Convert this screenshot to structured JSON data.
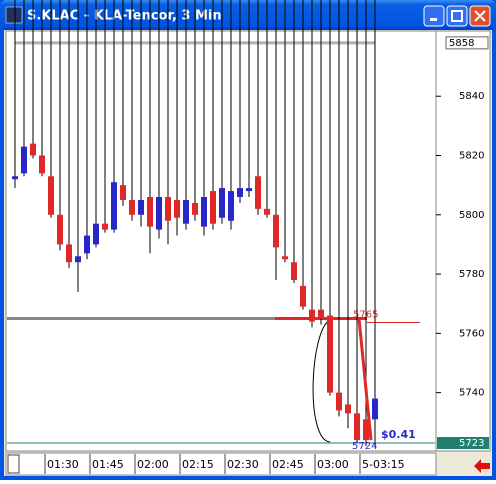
{
  "window": {
    "title": "S.KLAC - KLA-Tencor, 3 Min"
  },
  "chart_data": {
    "type": "candlestick",
    "categories": [
      null,
      null,
      null,
      null,
      "01:30",
      null,
      null,
      null,
      null,
      "01:45",
      null,
      null,
      null,
      null,
      "02:00",
      null,
      null,
      null,
      null,
      "02:15",
      null,
      null,
      null,
      null,
      "02:30",
      null,
      null,
      null,
      null,
      "02:45",
      null,
      null,
      null,
      null,
      "03:00",
      null,
      null,
      null,
      null,
      "5-03:15",
      null
    ],
    "open": [
      5812,
      5814,
      5824,
      5820,
      5813,
      5800,
      5790,
      5784,
      5787,
      5790,
      5797,
      5795,
      5810,
      5805,
      5800,
      5806,
      5795,
      5806,
      5805,
      5797,
      5804,
      5796,
      5808,
      5799,
      5798,
      5806,
      5808,
      5813,
      5802,
      5800,
      5786,
      5784,
      5776,
      5768,
      5768,
      5766,
      5740,
      5736,
      5733,
      5731,
      5731
    ],
    "high": 5858,
    "low": [
      5809,
      5813,
      5819,
      5813,
      5799,
      5788,
      5782,
      5774,
      5785,
      5789,
      5794,
      5794,
      5803,
      5798,
      5796,
      5787,
      5792,
      5790,
      5793,
      5795,
      5798,
      5793,
      5795,
      5797,
      5795,
      5804,
      5806,
      5800,
      5799,
      5778,
      5784,
      5777,
      5768,
      5762,
      5763,
      5739,
      5732,
      5728,
      5723,
      5722,
      5722
    ],
    "close": [
      5813,
      5823,
      5820,
      5814,
      5800,
      5790,
      5784,
      5786,
      5793,
      5797,
      5795,
      5811,
      5805,
      5800,
      5805,
      5796,
      5806,
      5798,
      5799,
      5805,
      5800,
      5806,
      5797,
      5809,
      5808,
      5809,
      5809,
      5802,
      5800,
      5789,
      5785,
      5778,
      5769,
      5764,
      5765,
      5740,
      5734,
      5733,
      5724,
      5724,
      5738
    ],
    "up_color": "#2828c8",
    "down_color": "#e02828",
    "ylim": [
      5722,
      5862
    ],
    "yticks": [
      5740,
      5760,
      5780,
      5800,
      5820,
      5840
    ],
    "last": 5723,
    "level": 5765,
    "measure": {
      "to": 5724,
      "label": "$0.41"
    }
  }
}
